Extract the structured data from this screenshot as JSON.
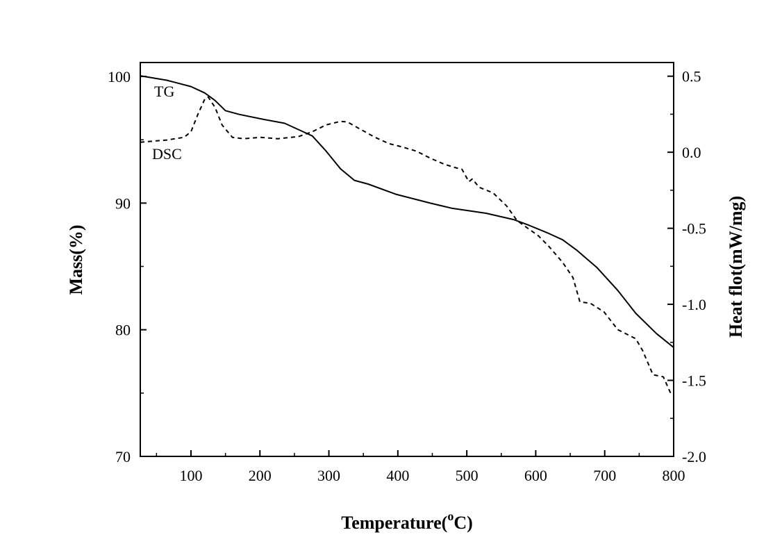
{
  "chart_data": {
    "type": "line",
    "title": "",
    "xlabel": "Temperature(",
    "xlabel_sup": "o",
    "xlabel_unit": "C)",
    "ylabel_left": "Mass(%)",
    "ylabel_right": "Heat flot(mW/mg)",
    "xlim": [
      26.5,
      800
    ],
    "ylim_left": [
      70,
      101.1
    ],
    "ylim_right": [
      -2.0,
      0.59
    ],
    "xticks": [
      100,
      200,
      300,
      400,
      500,
      600,
      700,
      800
    ],
    "xtick_labels": [
      "100",
      "200",
      "300",
      "400",
      "500",
      "600",
      "700",
      "800"
    ],
    "yticks_left": [
      70,
      80,
      90,
      100
    ],
    "ytick_labels_left": [
      "70",
      "80",
      "90",
      "100"
    ],
    "yticks_right": [
      -2.0,
      -1.5,
      -1.0,
      -0.5,
      0.0,
      0.5
    ],
    "ytick_labels_right": [
      "-2.0",
      "-1.5",
      "-1.0",
      "-0.5",
      "0.0",
      "0.5"
    ],
    "grid": false,
    "series": [
      {
        "name": "TG",
        "axis": "left",
        "style": "solid",
        "x": [
          26.5,
          64.8,
          100,
          120,
          135,
          150,
          170,
          206,
          236,
          256,
          276,
          296,
          317,
          337,
          357,
          397,
          447,
          478,
          528,
          568,
          588,
          619,
          639,
          659,
          689,
          719,
          745,
          775,
          800
        ],
        "y": [
          100.05,
          99.7,
          99.2,
          98.7,
          98.1,
          97.3,
          97.0,
          96.6,
          96.3,
          95.8,
          95.3,
          94.1,
          92.7,
          91.8,
          91.5,
          90.7,
          90.0,
          89.6,
          89.2,
          88.7,
          88.3,
          87.6,
          87.1,
          86.3,
          84.9,
          83.1,
          81.3,
          79.7,
          78.6
        ]
      },
      {
        "name": "DSC",
        "axis": "right",
        "style": "dashed",
        "x": [
          26.5,
          64.8,
          90,
          100,
          110,
          120,
          125,
          135,
          145,
          160,
          176,
          201,
          226,
          256,
          276,
          296,
          317,
          327,
          347,
          367,
          387,
          407,
          427,
          447,
          468,
          488,
          493,
          503,
          508,
          518,
          538,
          558,
          573,
          583,
          604,
          619,
          639,
          654,
          664,
          679,
          699,
          719,
          745,
          755,
          770,
          785,
          795,
          800
        ],
        "y": [
          0.066,
          0.08,
          0.098,
          0.135,
          0.249,
          0.349,
          0.363,
          0.295,
          0.18,
          0.098,
          0.089,
          0.098,
          0.089,
          0.103,
          0.135,
          0.18,
          0.203,
          0.199,
          0.148,
          0.098,
          0.057,
          0.034,
          0.007,
          -0.039,
          -0.08,
          -0.107,
          -0.112,
          -0.194,
          -0.176,
          -0.231,
          -0.267,
          -0.354,
          -0.45,
          -0.482,
          -0.55,
          -0.619,
          -0.724,
          -0.824,
          -0.984,
          -0.993,
          -1.05,
          -1.167,
          -1.226,
          -1.304,
          -1.463,
          -1.477,
          -1.578,
          -1.6
        ]
      }
    ],
    "annotations": [
      "TG",
      "DSC"
    ]
  }
}
